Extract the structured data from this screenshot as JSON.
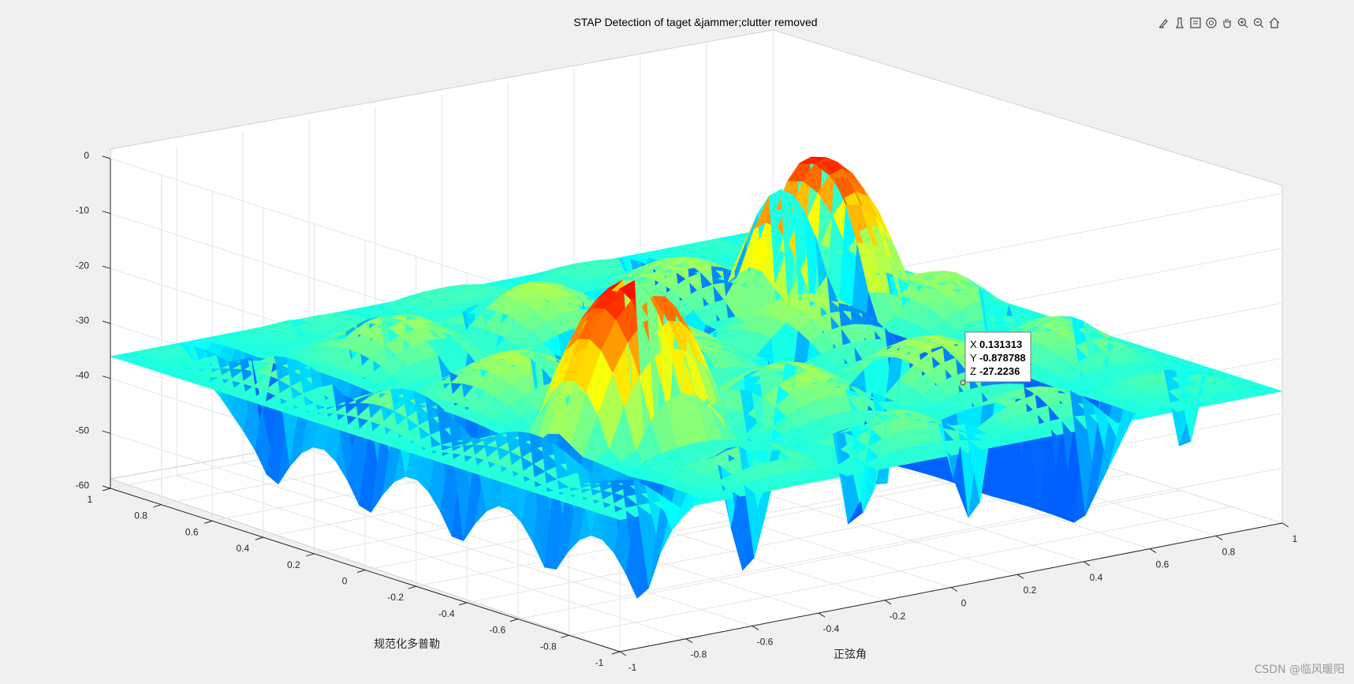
{
  "toolbar": {
    "items": [
      {
        "name": "brush-icon",
        "label": "Brush"
      },
      {
        "name": "data-tips-icon",
        "label": "Data Tips"
      },
      {
        "name": "export-icon",
        "label": "Export"
      },
      {
        "name": "rotate-3d-icon",
        "label": "Rotate 3D"
      },
      {
        "name": "pan-icon",
        "label": "Pan"
      },
      {
        "name": "zoom-in-icon",
        "label": "Zoom In"
      },
      {
        "name": "zoom-out-icon",
        "label": "Zoom Out"
      },
      {
        "name": "home-icon",
        "label": "Restore View"
      }
    ]
  },
  "chart_data": {
    "type": "surface",
    "title": "STAP Detection of taget &jammer;clutter removed",
    "xlabel": "正弦角",
    "ylabel": "规范化多普勒",
    "zlabel": "",
    "xlim": [
      -1,
      1
    ],
    "ylim": [
      -1,
      1
    ],
    "zlim": [
      -60,
      0
    ],
    "xticks": [
      "-1",
      "-0.8",
      "-0.6",
      "-0.4",
      "-0.2",
      "0",
      "0.2",
      "0.4",
      "0.6",
      "0.8",
      "1"
    ],
    "yticks": [
      "-1",
      "-0.8",
      "-0.6",
      "-0.4",
      "-0.2",
      "0",
      "0.2",
      "0.4",
      "0.6",
      "0.8",
      "1"
    ],
    "zticks": [
      "0",
      "-10",
      "-20",
      "-30",
      "-40",
      "-50",
      "-60"
    ],
    "colormap": "jet",
    "grid": true,
    "peaks": [
      {
        "x": 0.6,
        "y": 0.3,
        "z": -8
      },
      {
        "x": -0.5,
        "y": -0.4,
        "z": -7
      }
    ],
    "floor_level": -36,
    "datatip": {
      "x_label": "X",
      "x": "0.131313",
      "y_label": "Y",
      "y": "-0.878788",
      "z_label": "Z",
      "z": "-27.2236"
    }
  },
  "watermark": "CSDN @临风暖阳"
}
